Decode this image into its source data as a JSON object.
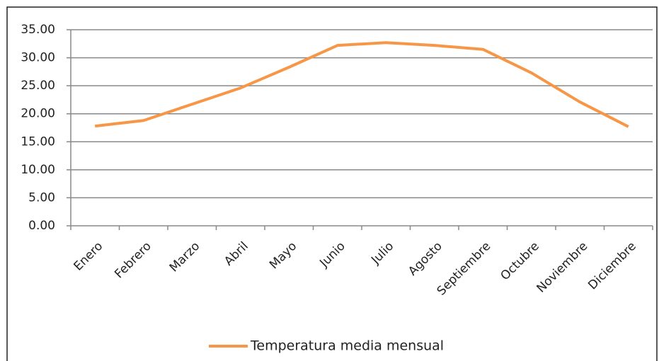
{
  "chart_data": {
    "type": "line",
    "categories": [
      "Enero",
      "Febrero",
      "Marzo",
      "Abril",
      "Mayo",
      "Junio",
      "Julio",
      "Agosto",
      "Septiembre",
      "Octubre",
      "Noviembre",
      "Diciembre"
    ],
    "series": [
      {
        "name": "Temperatura media mensual",
        "color": "#f79646",
        "values": [
          17.8,
          18.8,
          21.7,
          24.6,
          28.3,
          32.2,
          32.7,
          32.2,
          31.5,
          27.3,
          22.1,
          17.7
        ]
      }
    ],
    "ylim": [
      0,
      35
    ],
    "yticks": [
      {
        "value": 0,
        "label": "0.00"
      },
      {
        "value": 5,
        "label": "5.00"
      },
      {
        "value": 10,
        "label": "10.00"
      },
      {
        "value": 15,
        "label": "15.00"
      },
      {
        "value": 20,
        "label": "20.00"
      },
      {
        "value": 25,
        "label": "25.00"
      },
      {
        "value": 30,
        "label": "30.00"
      },
      {
        "value": 35,
        "label": "35.00"
      }
    ],
    "grid": true,
    "legend": "bottom"
  }
}
